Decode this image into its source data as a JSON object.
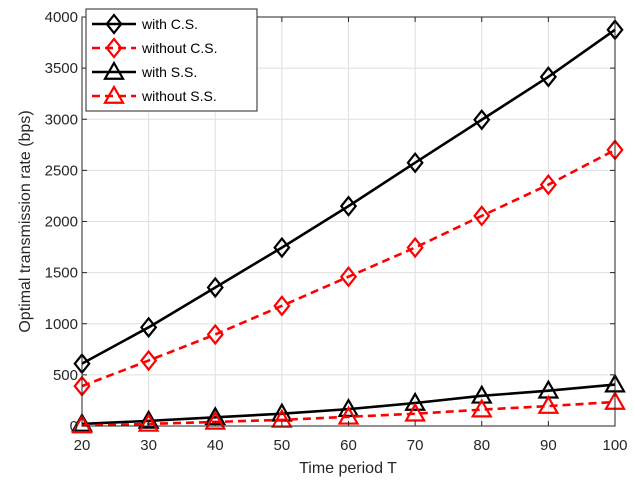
{
  "chart_data": {
    "type": "line",
    "xlabel": "Time period T",
    "ylabel": "Optimal transmission rate (bps)",
    "xlim": [
      20,
      100
    ],
    "ylim": [
      0,
      4000
    ],
    "xticks": [
      20,
      30,
      40,
      50,
      60,
      70,
      80,
      90,
      100
    ],
    "yticks": [
      0,
      500,
      1000,
      1500,
      2000,
      2500,
      3000,
      3500,
      4000
    ],
    "grid": true,
    "legend_position": "top-left",
    "x": [
      20,
      30,
      40,
      50,
      60,
      70,
      80,
      90,
      100
    ],
    "series": [
      {
        "name": "with C.S.",
        "values": [
          610,
          965,
          1355,
          1745,
          2150,
          2575,
          2995,
          3415,
          3875
        ],
        "color": "#000000",
        "dash": "solid",
        "marker": "diamond"
      },
      {
        "name": "without C.S.",
        "values": [
          390,
          640,
          895,
          1175,
          1460,
          1745,
          2055,
          2360,
          2700
        ],
        "color": "#ff0000",
        "dash": "dashed",
        "marker": "diamond"
      },
      {
        "name": "with S.S.",
        "values": [
          20,
          50,
          85,
          120,
          165,
          225,
          295,
          345,
          405
        ],
        "color": "#000000",
        "dash": "solid",
        "marker": "triangle"
      },
      {
        "name": "without S.S.",
        "values": [
          5,
          20,
          40,
          60,
          90,
          120,
          160,
          195,
          235
        ],
        "color": "#ff0000",
        "dash": "dashed",
        "marker": "triangle"
      }
    ]
  }
}
